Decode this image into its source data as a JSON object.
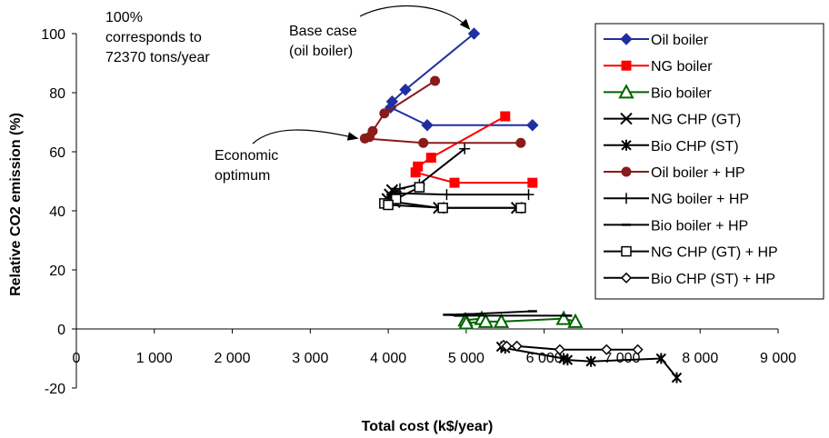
{
  "chart_data": {
    "type": "scatter",
    "title": "",
    "xlabel": "Total cost (k$/year)",
    "ylabel": "Relative CO2 emission (%)",
    "xlim": [
      0,
      9000
    ],
    "ylim": [
      -20,
      100
    ],
    "xticks": [
      0,
      1000,
      2000,
      3000,
      4000,
      5000,
      6000,
      7000,
      8000,
      9000
    ],
    "xtick_labels": [
      "0",
      "1 000",
      "2 000",
      "3 000",
      "4 000",
      "5 000",
      "6 000",
      "7 000",
      "8 000",
      "9 000"
    ],
    "yticks": [
      -20,
      0,
      20,
      40,
      60,
      80,
      100
    ],
    "ytick_labels": [
      "-20",
      "0",
      "20",
      "40",
      "60",
      "80",
      "100"
    ],
    "grid": false,
    "legend_position": "right",
    "series": [
      {
        "name": "Oil boiler",
        "color": "#1f2f9f",
        "marker": "diamond",
        "points": [
          [
            5100,
            100
          ],
          [
            4220,
            81
          ],
          [
            4050,
            77
          ],
          [
            4030,
            75
          ],
          [
            4500,
            69
          ],
          [
            5850,
            69
          ]
        ]
      },
      {
        "name": "NG boiler",
        "color": "#ff0000",
        "marker": "square",
        "points": [
          [
            5500,
            72
          ],
          [
            4550,
            58
          ],
          [
            4380,
            55
          ],
          [
            4350,
            53
          ],
          [
            4850,
            49.5
          ],
          [
            5850,
            49.5
          ]
        ]
      },
      {
        "name": "Bio boiler",
        "color": "#006400",
        "marker": "triangle-open",
        "points": [
          [
            5200,
            3.5
          ],
          [
            4990,
            3
          ],
          [
            5000,
            2
          ],
          [
            5250,
            2.5
          ],
          [
            5450,
            2.5
          ],
          [
            6250,
            3.5
          ],
          [
            6400,
            2.5
          ]
        ]
      },
      {
        "name": "NG CHP (GT)",
        "color": "#000000",
        "marker": "x",
        "points": [
          [
            4050,
            47
          ],
          [
            4020,
            45.5
          ],
          [
            3990,
            44
          ],
          [
            4080,
            43
          ],
          [
            4650,
            41
          ],
          [
            5650,
            41
          ]
        ]
      },
      {
        "name": "Bio CHP (ST)",
        "color": "#000000",
        "marker": "star",
        "points": [
          [
            5450,
            -6
          ],
          [
            5500,
            -6.5
          ],
          [
            6250,
            -10
          ],
          [
            6300,
            -10.5
          ],
          [
            6600,
            -11
          ],
          [
            7500,
            -10
          ],
          [
            7700,
            -16.5
          ]
        ]
      },
      {
        "name": "Oil boiler + HP",
        "color": "#8b1a1a",
        "marker": "circle",
        "points": [
          [
            4600,
            84
          ],
          [
            3950,
            73
          ],
          [
            3800,
            67
          ],
          [
            3760,
            65
          ],
          [
            3700,
            64.5
          ],
          [
            4450,
            63
          ],
          [
            5700,
            63
          ]
        ]
      },
      {
        "name": "NG boiler + HP",
        "color": "#000000",
        "marker": "plus",
        "points": [
          [
            4980,
            61
          ],
          [
            4400,
            49
          ],
          [
            4150,
            47.5
          ],
          [
            4100,
            46.5
          ],
          [
            4050,
            46
          ],
          [
            4750,
            45.5
          ],
          [
            5800,
            45.5
          ]
        ]
      },
      {
        "name": "Bio boiler + HP",
        "color": "#000000",
        "marker": "dash",
        "points": [
          [
            5850,
            6
          ],
          [
            5020,
            5
          ],
          [
            4760,
            4.8
          ],
          [
            4900,
            4.5
          ],
          [
            6300,
            4.5
          ]
        ]
      },
      {
        "name": "NG CHP (GT) + HP",
        "color": "#000000",
        "marker": "square-open",
        "points": [
          [
            4400,
            48
          ],
          [
            4100,
            44
          ],
          [
            3950,
            42.5
          ],
          [
            4000,
            42
          ],
          [
            4700,
            41
          ],
          [
            5700,
            41
          ]
        ]
      },
      {
        "name": "Bio CHP (ST) + HP",
        "color": "#000000",
        "marker": "diamond-open",
        "points": [
          [
            5480,
            -5.5
          ],
          [
            5520,
            -5.8
          ],
          [
            5650,
            -5.8
          ],
          [
            6200,
            -7
          ],
          [
            6800,
            -7
          ],
          [
            7200,
            -7
          ]
        ]
      }
    ],
    "annotations": [
      {
        "text": [
          "100%",
          "corresponds to",
          "72370 tons/year"
        ]
      },
      {
        "text": [
          "Base case",
          "(oil boiler)"
        ],
        "arrow_to": [
          5100,
          100
        ]
      },
      {
        "text": [
          "Economic",
          "optimum"
        ],
        "arrow_to": [
          3700,
          64.5
        ]
      }
    ]
  }
}
